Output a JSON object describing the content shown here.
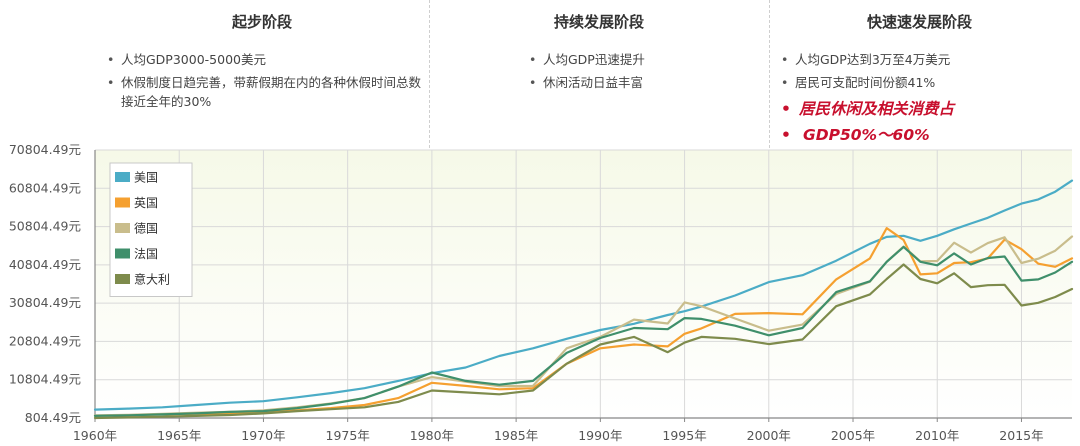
{
  "stages": [
    {
      "title": "起步阶段",
      "bullets": [
        "人均GDP3000-5000美元",
        "休假制度日趋完善，带薪假期在内的各种休假时间总数接近全年的30%"
      ]
    },
    {
      "title": "持续发展阶段",
      "bullets": [
        "人均GDP迅速提升",
        "休闲活动日益丰富"
      ]
    },
    {
      "title": "快速速发展阶段",
      "bullets": [
        "人均GDP达到3万至4万美元",
        "居民可支配时间份额41%"
      ],
      "emphasis": [
        "居民休闲及相关消费占",
        "GDP50%～60%"
      ]
    }
  ],
  "colors": {
    "plot_bg_top": "#f6f9e8",
    "plot_bg_bottom": "#ffffff",
    "grid": "#d9d9d9",
    "axis": "#888888"
  },
  "chart_data": {
    "type": "line",
    "x_min": 1960,
    "x_max": 2018,
    "ylim": [
      804.49,
      70804.49
    ],
    "grid": true,
    "legend_position": "top-left",
    "x_tick_values": [
      1960,
      1965,
      1970,
      1975,
      1980,
      1985,
      1990,
      1995,
      2000,
      2005,
      2010,
      2015
    ],
    "x_tick_labels": [
      "1960年",
      "1965年",
      "1970年",
      "1975年",
      "1980年",
      "1985年",
      "1990年",
      "1995年",
      "2000年",
      "2005年",
      "2010年",
      "2015年"
    ],
    "y_tick_values": [
      804.49,
      10804.49,
      20804.49,
      30804.49,
      40804.49,
      50804.49,
      60804.49,
      70804.49
    ],
    "y_tick_labels": [
      "804.49元",
      "10804.49元",
      "20804.49元",
      "30804.49元",
      "40804.49元",
      "50804.49元",
      "60804.49元",
      "70804.49元"
    ],
    "x": [
      1960,
      1962,
      1964,
      1966,
      1968,
      1970,
      1972,
      1974,
      1976,
      1978,
      1980,
      1982,
      1984,
      1986,
      1988,
      1990,
      1992,
      1994,
      1995,
      1996,
      1998,
      2000,
      2002,
      2004,
      2006,
      2007,
      2008,
      2009,
      2010,
      2011,
      2012,
      2013,
      2014,
      2015,
      2016,
      2017,
      2018
    ],
    "series": [
      {
        "name": "美国",
        "color": "#4bacc6",
        "values": [
          3000,
          3250,
          3600,
          4200,
          4800,
          5200,
          6200,
          7300,
          8600,
          10500,
          12500,
          14000,
          17000,
          19000,
          21500,
          23800,
          25400,
          27700,
          28700,
          29900,
          32800,
          36300,
          38100,
          41900,
          46300,
          48100,
          48400,
          47100,
          48400,
          50100,
          51600,
          53100,
          55000,
          56800,
          57900,
          59900,
          62800
        ]
      },
      {
        "name": "英国",
        "color": "#f5a030",
        "values": [
          1400,
          1500,
          1750,
          1900,
          1900,
          2200,
          2800,
          3400,
          4200,
          6000,
          10000,
          9200,
          8300,
          8600,
          15000,
          19000,
          20000,
          19500,
          22800,
          24200,
          28000,
          28200,
          27900,
          37000,
          42500,
          50400,
          47300,
          38300,
          38600,
          41300,
          41500,
          42500,
          47400,
          44900,
          41100,
          40300,
          42500
        ]
      },
      {
        "name": "德国",
        "color": "#c9bd8c",
        "values": [
          1500,
          1650,
          1900,
          2200,
          2400,
          2800,
          3600,
          4600,
          6000,
          9000,
          11500,
          10300,
          9100,
          9200,
          19000,
          22000,
          26500,
          25500,
          31000,
          30000,
          26800,
          23600,
          25200,
          33200,
          36400,
          41600,
          45600,
          41700,
          41800,
          46600,
          44000,
          46500,
          48000,
          41300,
          42400,
          44500,
          48200
        ]
      },
      {
        "name": "法国",
        "color": "#3f8f6b",
        "values": [
          1350,
          1500,
          1750,
          2000,
          2400,
          2600,
          3400,
          4500,
          6000,
          9000,
          12700,
          10500,
          9500,
          10500,
          17800,
          21700,
          24300,
          24000,
          26900,
          26700,
          24900,
          22400,
          24300,
          33700,
          36500,
          41600,
          45500,
          41600,
          40700,
          43800,
          40900,
          42600,
          43000,
          36700,
          37000,
          38800,
          41600
        ]
      },
      {
        "name": "意大利",
        "color": "#7e8b4c",
        "values": [
          800,
          950,
          1150,
          1350,
          1600,
          2000,
          2600,
          3100,
          3600,
          5000,
          8000,
          7500,
          7000,
          8000,
          15000,
          20000,
          22000,
          18000,
          20500,
          22000,
          21500,
          20100,
          21300,
          30000,
          33100,
          37100,
          40900,
          37100,
          36000,
          38600,
          35000,
          35500,
          35600,
          30200,
          30900,
          32400,
          34500
        ]
      }
    ]
  }
}
